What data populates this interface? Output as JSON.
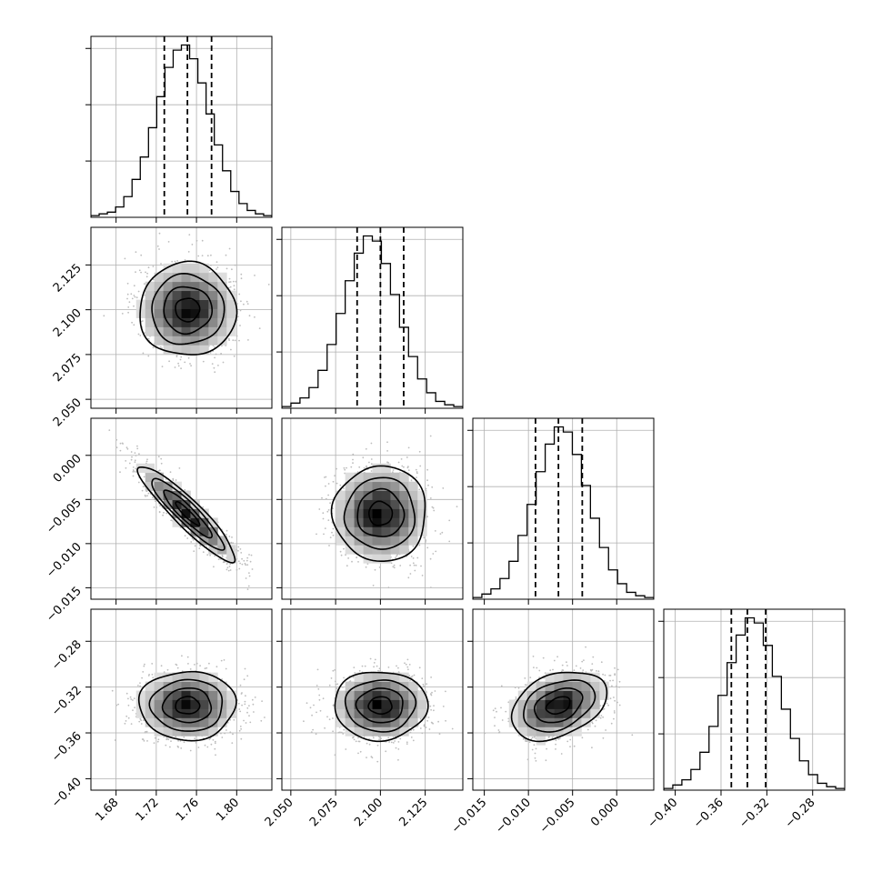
{
  "chart_data": {
    "type": "corner",
    "grid": true,
    "parameters": [
      {
        "index": 0,
        "range": [
          1.655,
          1.835
        ],
        "ticks": [
          1.68,
          1.72,
          1.76,
          1.8
        ],
        "tick_labels": [
          "1.68",
          "1.72",
          "1.76",
          "1.80"
        ],
        "quantiles": [
          1.728,
          1.751,
          1.775
        ]
      },
      {
        "index": 1,
        "range": [
          2.045,
          2.146
        ],
        "ticks": [
          2.05,
          2.075,
          2.1,
          2.125
        ],
        "tick_labels": [
          "2.050",
          "2.075",
          "2.100",
          "2.125"
        ],
        "quantiles": [
          2.087,
          2.1,
          2.113
        ]
      },
      {
        "index": 2,
        "range": [
          -0.0163,
          0.0042
        ],
        "ticks": [
          -0.015,
          -0.01,
          -0.005,
          0.0
        ],
        "tick_labels": [
          "−0.015",
          "−0.010",
          "−0.005",
          "0.000"
        ],
        "quantiles": [
          -0.0092,
          -0.0066,
          -0.0039
        ]
      },
      {
        "index": 3,
        "range": [
          -0.41,
          -0.252
        ],
        "ticks": [
          -0.4,
          -0.36,
          -0.32,
          -0.28
        ],
        "tick_labels": [
          "−0.40",
          "−0.36",
          "−0.32",
          "−0.28"
        ],
        "quantiles": [
          -0.351,
          -0.337,
          -0.321
        ]
      }
    ],
    "histograms": [
      {
        "param": 0,
        "counts": [
          1,
          2,
          3,
          6,
          12,
          22,
          35,
          52,
          70,
          87,
          97,
          100,
          92,
          78,
          60,
          42,
          27,
          15,
          8,
          4,
          2,
          1
        ]
      },
      {
        "param": 1,
        "counts": [
          1,
          3,
          6,
          12,
          22,
          37,
          55,
          74,
          90,
          100,
          97,
          84,
          66,
          47,
          30,
          17,
          9,
          4,
          2,
          1
        ]
      },
      {
        "param": 2,
        "counts": [
          1,
          3,
          6,
          12,
          22,
          37,
          55,
          74,
          90,
          100,
          97,
          84,
          66,
          47,
          30,
          17,
          9,
          4,
          2,
          1
        ]
      },
      {
        "param": 3,
        "counts": [
          1,
          3,
          6,
          12,
          22,
          37,
          55,
          74,
          90,
          100,
          97,
          84,
          66,
          47,
          30,
          17,
          9,
          4,
          2,
          1
        ]
      }
    ],
    "joint_panels": [
      {
        "x": 0,
        "y": 1,
        "mean": [
          1.751,
          2.1
        ],
        "sigma": [
          0.024,
          0.013
        ],
        "rho": 0.0
      },
      {
        "x": 0,
        "y": 2,
        "mean": [
          1.751,
          -0.0066
        ],
        "sigma": [
          0.024,
          0.0027
        ],
        "rho": -0.92
      },
      {
        "x": 1,
        "y": 2,
        "mean": [
          2.1,
          -0.0066
        ],
        "sigma": [
          0.013,
          0.0027
        ],
        "rho": 0.0
      },
      {
        "x": 0,
        "y": 3,
        "mean": [
          1.751,
          -0.336
        ],
        "sigma": [
          0.024,
          0.015
        ],
        "rho": 0.0
      },
      {
        "x": 1,
        "y": 3,
        "mean": [
          2.1,
          -0.336
        ],
        "sigma": [
          0.013,
          0.015
        ],
        "rho": 0.0
      },
      {
        "x": 2,
        "y": 3,
        "mean": [
          -0.0066,
          -0.336
        ],
        "sigma": [
          0.0027,
          0.015
        ],
        "rho": 0.35
      }
    ],
    "contour_sigma_levels": [
      0.5,
      1.0,
      1.5,
      2.0
    ],
    "colors": {
      "line": "#000000",
      "grid": "#b0b0b0",
      "points": "#bdbdbd",
      "density_dark": "#000000"
    }
  }
}
